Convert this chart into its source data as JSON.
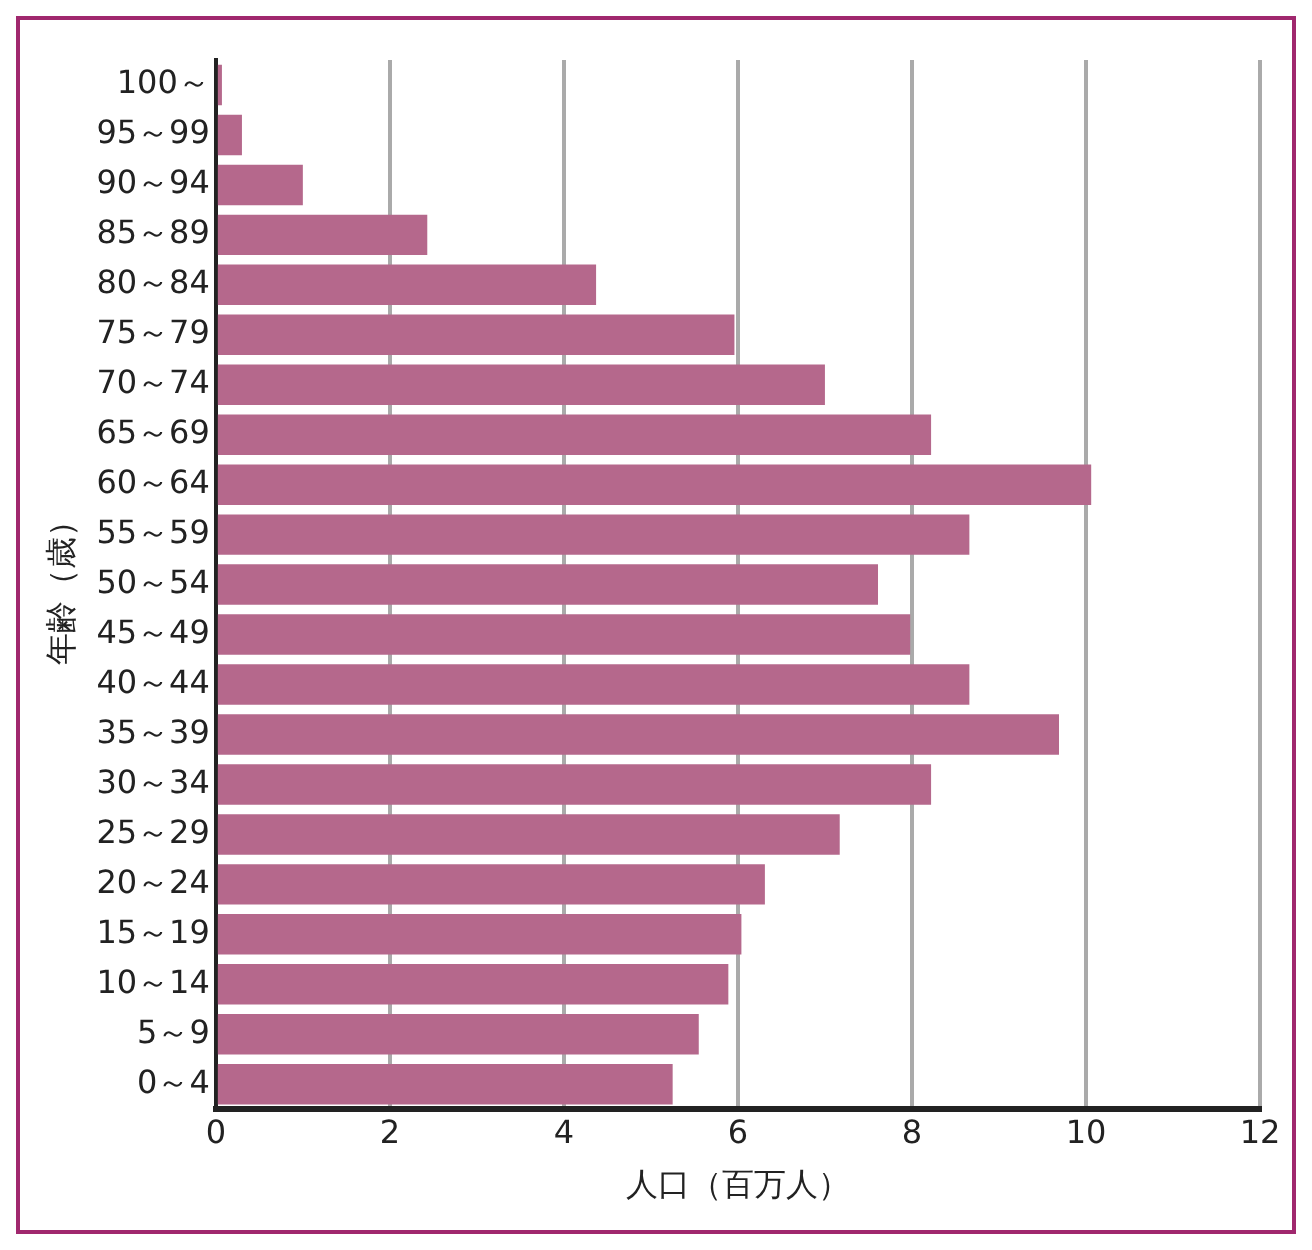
{
  "chart_data": {
    "type": "bar",
    "orientation": "horizontal",
    "xlabel": "人口（百万人）",
    "ylabel": "年齢（歳）",
    "categories": [
      "100～",
      "95～99",
      "90～94",
      "85～89",
      "80～84",
      "75～79",
      "70～74",
      "65～69",
      "60～64",
      "55～59",
      "50～54",
      "45～49",
      "40～44",
      "35～39",
      "30～34",
      "25～29",
      "20～24",
      "15～19",
      "10～14",
      "5～9",
      "0～4"
    ],
    "values": [
      0.07,
      0.3,
      1.0,
      2.43,
      4.37,
      5.96,
      7.0,
      8.22,
      10.06,
      8.66,
      7.61,
      7.98,
      8.66,
      9.69,
      8.22,
      7.17,
      6.31,
      6.04,
      5.89,
      5.55,
      5.25
    ],
    "color": "#b5688c",
    "xlim": [
      0,
      12
    ],
    "xticks": [
      0,
      2,
      4,
      6,
      8,
      10,
      12
    ],
    "grid": "x"
  }
}
